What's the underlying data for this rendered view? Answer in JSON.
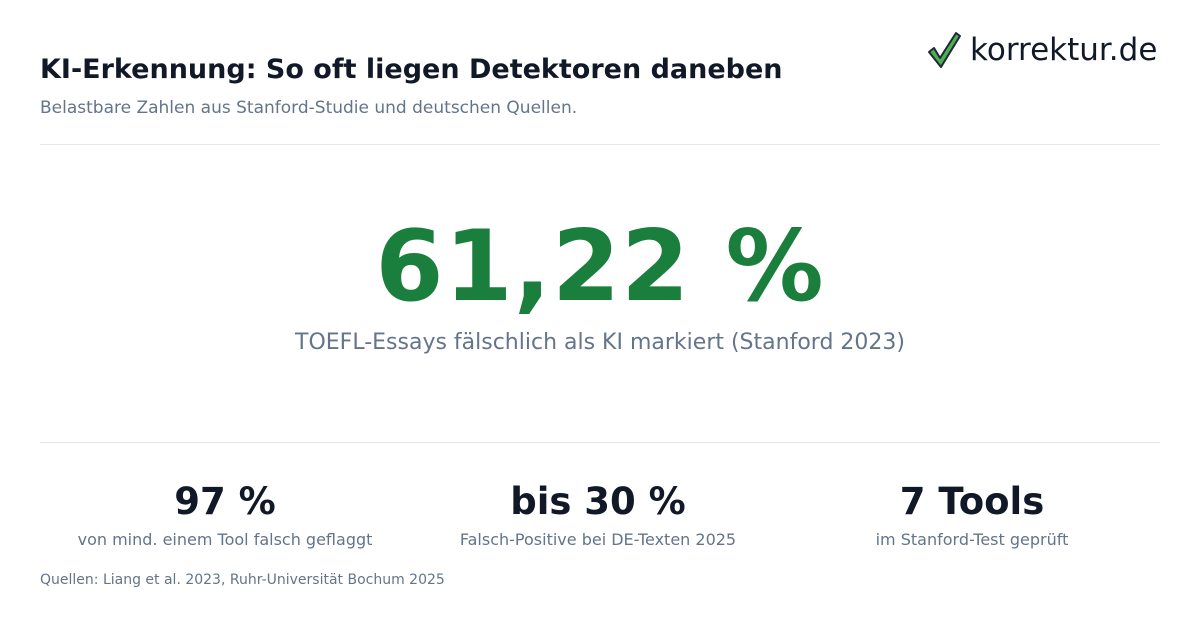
{
  "header": {
    "title": "KI-Erkennung: So oft liegen Detektoren daneben",
    "subtitle": "Belastbare Zahlen aus Stanford-Studie und deutschen Quellen.",
    "logo": "korrektur.de"
  },
  "hero": {
    "value": "61,22 %",
    "label": "TOEFL-Essays fälschlich als KI markiert (Stanford 2023)"
  },
  "stats": [
    {
      "value": "97 %",
      "label": "von mind. einem Tool falsch geflaggt"
    },
    {
      "value": "bis 30 %",
      "label": "Falsch-Positive bei DE-Texten 2025"
    },
    {
      "value": "7 Tools",
      "label": "im Stanford-Test geprüft"
    }
  ],
  "footer": {
    "sources": "Quellen: Liang et al. 2023, Ruhr-Universität Bochum 2025"
  }
}
